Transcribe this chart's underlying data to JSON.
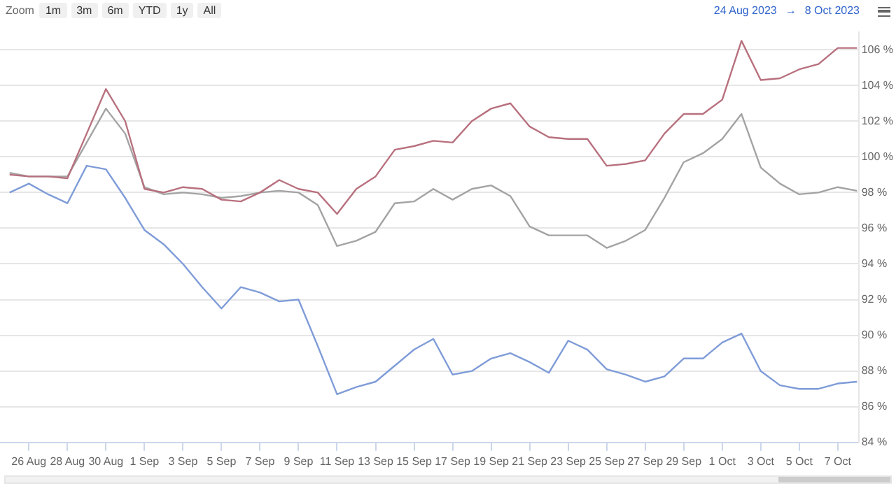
{
  "chart_data": {
    "type": "line",
    "annotations": [
      "Zoom",
      "1m",
      "3m",
      "6m",
      "YTD",
      "1y",
      "All",
      "24 Aug 2023",
      "→",
      "8 Oct 2023"
    ],
    "x": [
      "2023-08-25",
      "2023-08-26",
      "2023-08-27",
      "2023-08-28",
      "2023-08-29",
      "2023-08-30",
      "2023-08-31",
      "2023-09-01",
      "2023-09-02",
      "2023-09-03",
      "2023-09-04",
      "2023-09-05",
      "2023-09-06",
      "2023-09-07",
      "2023-09-08",
      "2023-09-09",
      "2023-09-10",
      "2023-09-11",
      "2023-09-12",
      "2023-09-13",
      "2023-09-14",
      "2023-09-15",
      "2023-09-16",
      "2023-09-17",
      "2023-09-18",
      "2023-09-19",
      "2023-09-20",
      "2023-09-21",
      "2023-09-22",
      "2023-09-23",
      "2023-09-24",
      "2023-09-25",
      "2023-09-26",
      "2023-09-27",
      "2023-09-28",
      "2023-09-29",
      "2023-09-30",
      "2023-10-01",
      "2023-10-02",
      "2023-10-03",
      "2023-10-04",
      "2023-10-05",
      "2023-10-06",
      "2023-10-07",
      "2023-10-08"
    ],
    "series": [
      {
        "color": "#b8707e",
        "values": [
          99.0,
          98.9,
          98.9,
          98.8,
          101.3,
          103.8,
          102.0,
          98.2,
          98.0,
          98.3,
          98.2,
          97.6,
          97.5,
          98.0,
          98.7,
          98.2,
          98.0,
          96.8,
          98.2,
          98.9,
          100.4,
          100.6,
          100.9,
          100.8,
          102.0,
          102.7,
          103.0,
          101.7,
          101.1,
          101.0,
          101.0,
          99.5,
          99.6,
          99.8,
          101.3,
          102.4,
          102.4,
          103.2,
          106.5,
          104.3,
          104.4,
          104.9,
          105.2,
          106.1,
          106.1
        ]
      },
      {
        "color": "#a3a3a3",
        "values": [
          99.1,
          98.9,
          98.9,
          98.9,
          100.8,
          102.7,
          101.3,
          98.3,
          97.9,
          98.0,
          97.9,
          97.7,
          97.8,
          98.0,
          98.1,
          98.0,
          97.3,
          95.0,
          95.3,
          95.8,
          97.4,
          97.5,
          98.2,
          97.6,
          98.2,
          98.4,
          97.8,
          96.1,
          95.6,
          95.6,
          95.6,
          94.9,
          95.3,
          95.9,
          97.7,
          99.7,
          100.2,
          101.0,
          102.4,
          99.4,
          98.5,
          97.9,
          98.0,
          98.3,
          98.1
        ]
      },
      {
        "color": "#7f9cd8",
        "values": [
          98.0,
          98.5,
          97.9,
          97.4,
          99.5,
          99.3,
          97.7,
          95.9,
          95.1,
          94.0,
          92.7,
          91.5,
          92.7,
          92.4,
          91.9,
          92.0,
          89.4,
          86.7,
          87.1,
          87.4,
          88.3,
          89.2,
          89.8,
          87.8,
          88.0,
          88.7,
          89.0,
          88.5,
          87.9,
          89.7,
          89.2,
          88.1,
          87.8,
          87.4,
          87.7,
          88.7,
          88.7,
          89.6,
          90.1,
          88.0,
          87.2,
          87.0,
          87.0,
          87.3,
          87.4
        ]
      }
    ],
    "xlim": [
      "2023-08-24T12:00",
      "2023-10-08T02:00"
    ],
    "xticks": [
      {
        "value": "2023-08-26",
        "label": "26 Aug"
      },
      {
        "value": "2023-08-28",
        "label": "28 Aug"
      },
      {
        "value": "2023-08-30",
        "label": "30 Aug"
      },
      {
        "value": "2023-09-01",
        "label": "1 Sep"
      },
      {
        "value": "2023-09-03",
        "label": "3 Sep"
      },
      {
        "value": "2023-09-05",
        "label": "5 Sep"
      },
      {
        "value": "2023-09-07",
        "label": "7 Sep"
      },
      {
        "value": "2023-09-09",
        "label": "9 Sep"
      },
      {
        "value": "2023-09-11",
        "label": "11 Sep"
      },
      {
        "value": "2023-09-13",
        "label": "13 Sep"
      },
      {
        "value": "2023-09-15",
        "label": "15 Sep"
      },
      {
        "value": "2023-09-17",
        "label": "17 Sep"
      },
      {
        "value": "2023-09-19",
        "label": "19 Sep"
      },
      {
        "value": "2023-09-21",
        "label": "21 Sep"
      },
      {
        "value": "2023-09-23",
        "label": "23 Sep"
      },
      {
        "value": "2023-09-25",
        "label": "25 Sep"
      },
      {
        "value": "2023-09-27",
        "label": "27 Sep"
      },
      {
        "value": "2023-09-29",
        "label": "29 Sep"
      },
      {
        "value": "2023-10-01",
        "label": "1 Oct"
      },
      {
        "value": "2023-10-03",
        "label": "3 Oct"
      },
      {
        "value": "2023-10-05",
        "label": "5 Oct"
      },
      {
        "value": "2023-10-07",
        "label": "7 Oct"
      }
    ],
    "ylim": [
      84,
      107
    ],
    "yticks": [
      {
        "value": 84,
        "label": "84 %"
      },
      {
        "value": 86,
        "label": "86 %"
      },
      {
        "value": 88,
        "label": "88 %"
      },
      {
        "value": 90,
        "label": "90 %"
      },
      {
        "value": 92,
        "label": "92 %"
      },
      {
        "value": 94,
        "label": "94 %"
      },
      {
        "value": 96,
        "label": "96 %"
      },
      {
        "value": 98,
        "label": "98 %"
      },
      {
        "value": 100,
        "label": "100 %"
      },
      {
        "value": 102,
        "label": "102 %"
      },
      {
        "value": 104,
        "label": "104 %"
      },
      {
        "value": 106,
        "label": "106 %"
      }
    ],
    "grid": "y",
    "legend": false,
    "marker": "none",
    "line_style": "solid"
  }
}
